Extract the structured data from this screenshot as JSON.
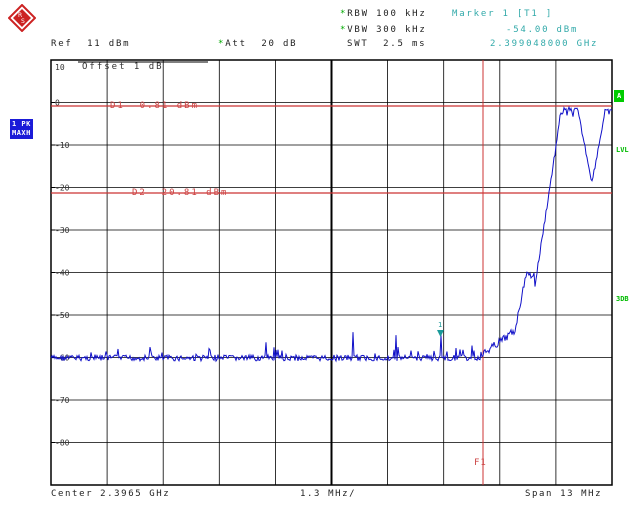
{
  "header": {
    "rbw_label": "RBW",
    "rbw_value": "100 kHz",
    "vbw_label": "VBW",
    "vbw_value": "300 kHz",
    "swt_label": "SWT",
    "swt_value": "2.5 ms",
    "ref_label": "Ref",
    "ref_value": "11 dBm",
    "att_label": "Att",
    "att_value": "20 dB",
    "marker_title": "Marker 1 [T1 ]",
    "marker_level": "-54.00 dBm",
    "marker_freq": "2.399048000 GHz",
    "star": "*"
  },
  "left_tags": {
    "trace": "1 PK",
    "mode": "MAXH"
  },
  "right_tags": {
    "a": "A",
    "lvl": "LVL",
    "db3": "3DB"
  },
  "overlay": {
    "offset": "Offset  1 dB",
    "d1": "D1  -0.81 dBm",
    "d2": "D2  -20.81 dBm",
    "f1": "F1",
    "marker_num": "1"
  },
  "y_ticks": [
    "10",
    "0",
    "-10",
    "-20",
    "-30",
    "-40",
    "-50",
    "-60",
    "-70",
    "-80"
  ],
  "footer": {
    "center": "Center 2.3965 GHz",
    "div": "1.3 MHz/",
    "span": "Span 13 MHz"
  },
  "colors": {
    "trace": "#1010c8",
    "limit": "#cc3333",
    "marker": "#1a9a9a",
    "grid": "#000000",
    "tag_bg": "#1b1bd8",
    "green_tag": "#00cc00"
  }
}
